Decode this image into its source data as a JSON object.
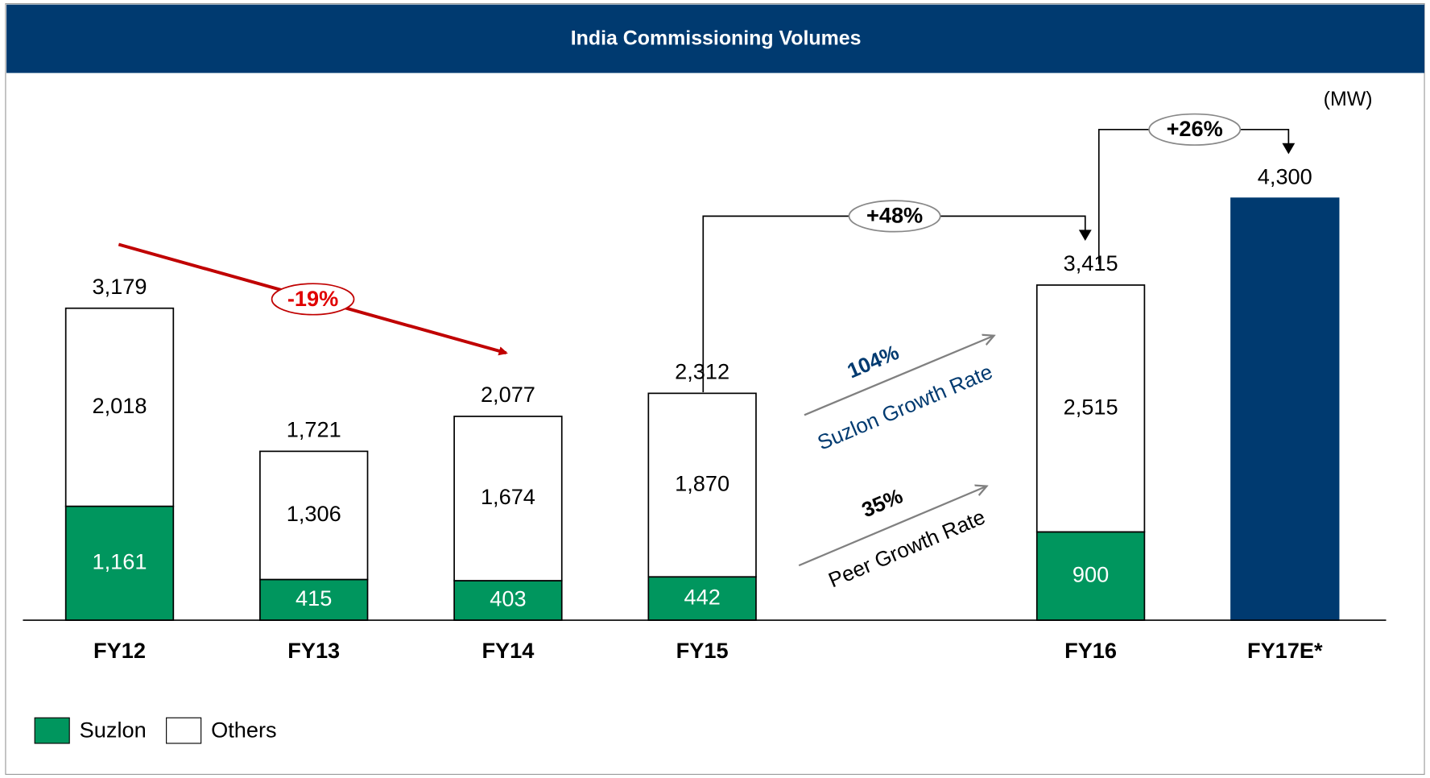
{
  "chart_data": {
    "type": "stacked_bar",
    "title": "India Commissioning Volumes",
    "unit_label": "(MW)",
    "categories": [
      "FY12",
      "FY13",
      "FY14",
      "FY15",
      null,
      "FY16",
      "FY17E*"
    ],
    "series": [
      {
        "name": "Suzlon",
        "color": "#00965e",
        "values": [
          1161,
          415,
          403,
          442,
          null,
          900,
          null
        ],
        "value_labels": [
          "1,161",
          "415",
          "403",
          "442",
          null,
          "900",
          null
        ]
      },
      {
        "name": "Others",
        "color": "#ffffff",
        "values": [
          2018,
          1306,
          1674,
          1870,
          null,
          2515,
          null
        ],
        "value_labels": [
          "2,018",
          "1,306",
          "1,674",
          "1,870",
          null,
          "2,515",
          null
        ]
      },
      {
        "color": "#003a70",
        "values": [
          null,
          null,
          null,
          null,
          null,
          null,
          4300
        ]
      }
    ],
    "totals": {
      "values": [
        3179,
        1721,
        2077,
        2312,
        null,
        3415,
        4300
      ],
      "value_labels": [
        "3,179",
        "1,721",
        "2,077",
        "2,312",
        null,
        "3,415",
        "4,300"
      ]
    },
    "annotations": [
      "-19%",
      "+48%",
      "+26%",
      "104%",
      "Suzlon Growth Rate",
      "35%",
      "Peer Growth Rate"
    ],
    "ylim": [
      0,
      5000
    ],
    "grid": false,
    "legend": "bottom-left"
  }
}
